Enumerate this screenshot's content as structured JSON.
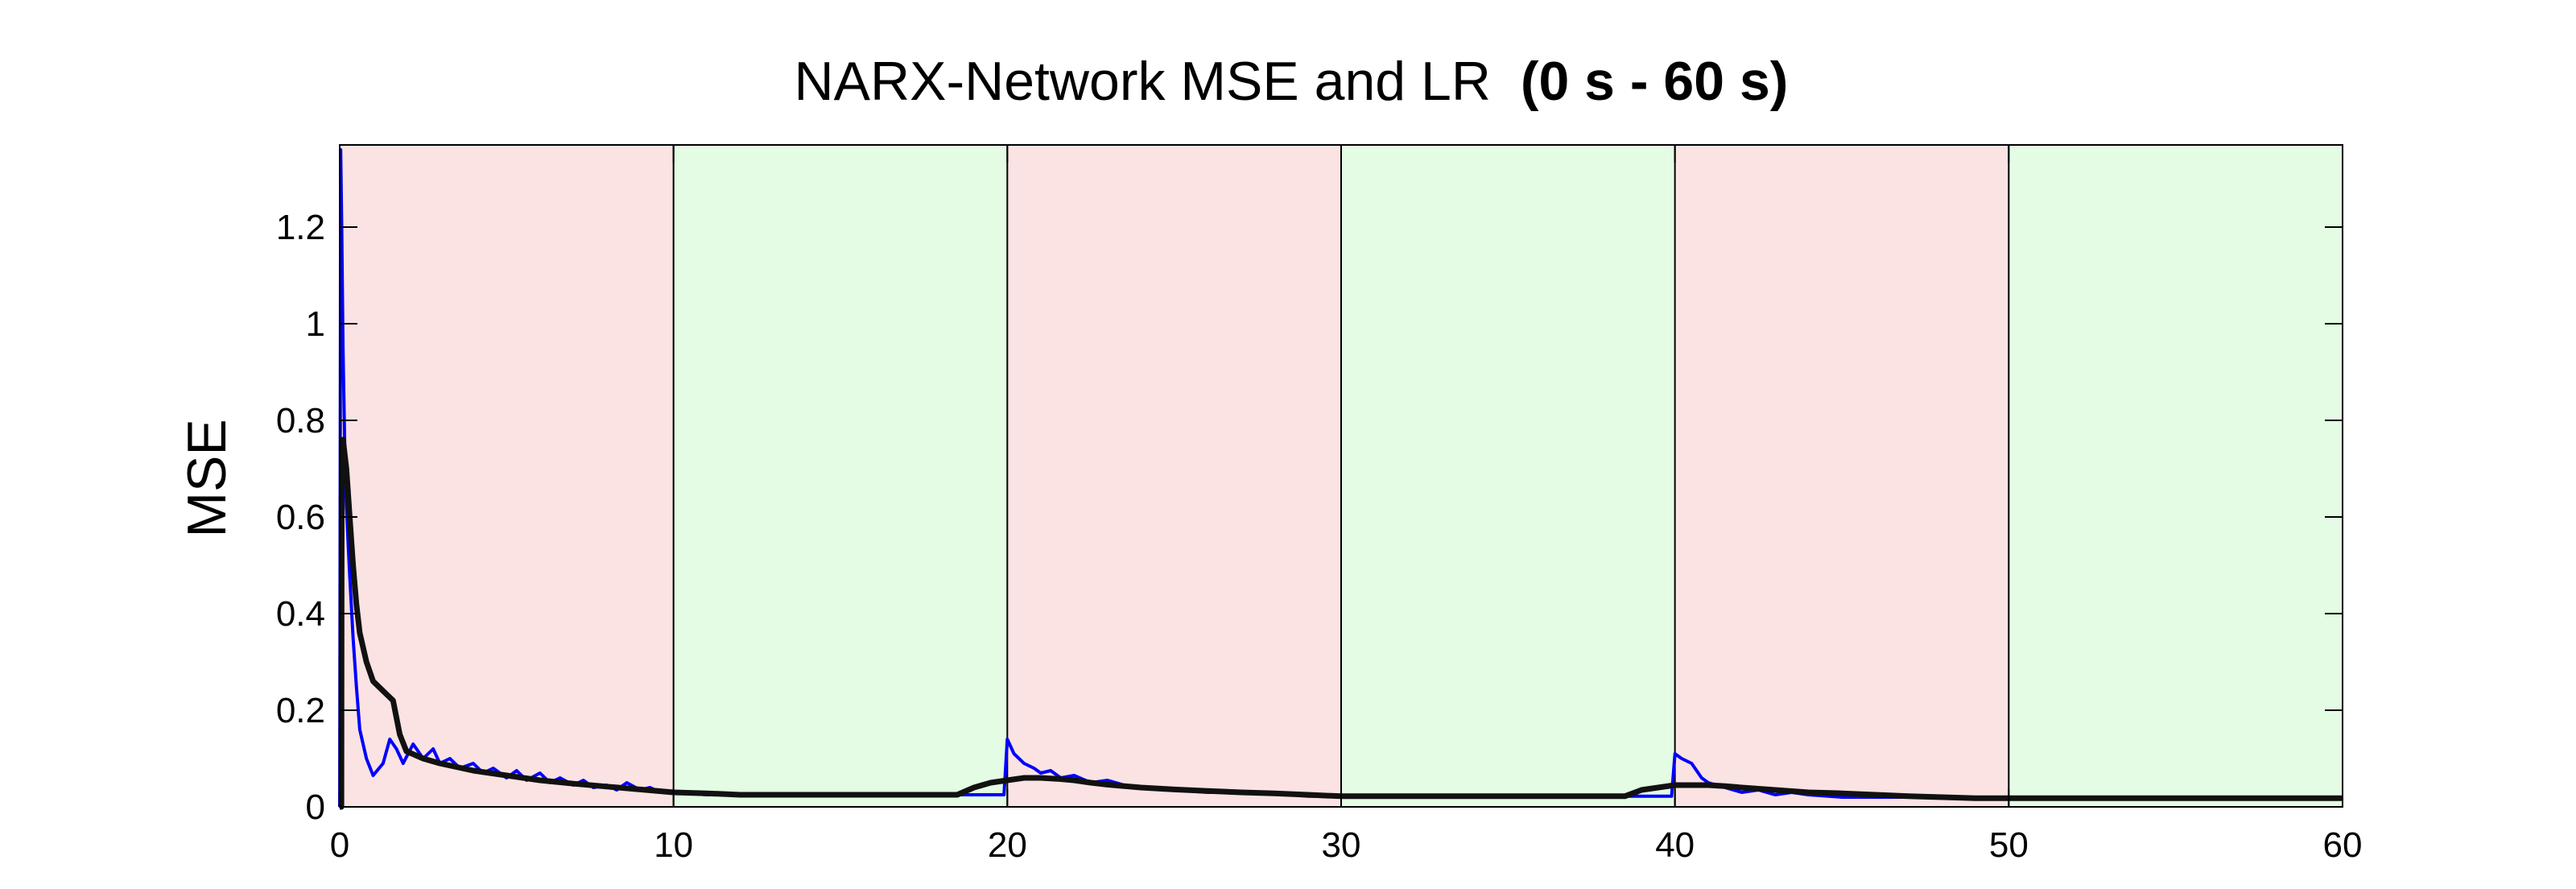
{
  "chart_data": {
    "type": "line",
    "title": "NARX-Network MSE and LR",
    "title_bold_suffix": "(0 s - 60 s)",
    "xlabel": "",
    "ylabel": "MSE",
    "xlim": [
      0,
      60
    ],
    "ylim": [
      0,
      1.37
    ],
    "x_ticks": [
      0,
      10,
      20,
      30,
      40,
      50,
      60
    ],
    "x_tick_labels": [
      "0",
      "10",
      "20",
      "30",
      "40",
      "50",
      "60"
    ],
    "y_ticks": [
      0,
      0.2,
      0.4,
      0.6,
      0.8,
      1,
      1.2
    ],
    "y_tick_labels": [
      "0",
      "0.2",
      "0.4",
      "0.6",
      "0.8",
      "1",
      "1.2"
    ],
    "grid": false,
    "colors": {
      "shade_red": "#fbe3e3",
      "shade_green": "#e3fce3",
      "divider": "#000000",
      "mse": "#0000ff",
      "lr": "#111111"
    },
    "shaded_regions": [
      {
        "x_start": 0,
        "x_end": 10,
        "color": "red"
      },
      {
        "x_start": 10,
        "x_end": 20,
        "color": "green"
      },
      {
        "x_start": 20,
        "x_end": 30,
        "color": "red"
      },
      {
        "x_start": 30,
        "x_end": 40,
        "color": "green"
      },
      {
        "x_start": 40,
        "x_end": 50,
        "color": "red"
      },
      {
        "x_start": 50,
        "x_end": 60,
        "color": "green"
      }
    ],
    "vertical_lines": [
      10,
      20,
      30,
      40,
      50
    ],
    "series": [
      {
        "color": "mse",
        "x": [
          0,
          0.03,
          0.06,
          0.1,
          0.15,
          0.2,
          0.3,
          0.4,
          0.5,
          0.6,
          0.8,
          1.0,
          1.3,
          1.5,
          1.7,
          1.9,
          2.2,
          2.5,
          2.8,
          3.0,
          3.3,
          3.6,
          4.0,
          4.3,
          4.6,
          5.0,
          5.3,
          5.6,
          6.0,
          6.3,
          6.6,
          7.0,
          7.3,
          7.6,
          8.0,
          8.3,
          8.6,
          9.0,
          9.3,
          9.6,
          10.0,
          11.0,
          12.0,
          14.0,
          16.0,
          18.0,
          19.9,
          20.0,
          20.2,
          20.5,
          20.8,
          21.0,
          21.3,
          21.6,
          22.0,
          22.5,
          23.0,
          23.5,
          24.0,
          25.0,
          26.0,
          27.0,
          28.0,
          29.0,
          30.0,
          32.0,
          35.0,
          38.0,
          39.9,
          40.0,
          40.2,
          40.5,
          40.8,
          41.0,
          41.5,
          42.0,
          42.5,
          43.0,
          43.5,
          44.0,
          45.0,
          46.0,
          47.0,
          48.0,
          49.0,
          50.0,
          52.0,
          55.0,
          58.0,
          60.0
        ],
        "values": [
          0.0,
          1.36,
          1.2,
          0.95,
          0.75,
          0.62,
          0.48,
          0.35,
          0.25,
          0.16,
          0.1,
          0.065,
          0.09,
          0.14,
          0.12,
          0.09,
          0.13,
          0.1,
          0.12,
          0.09,
          0.1,
          0.08,
          0.09,
          0.07,
          0.08,
          0.06,
          0.075,
          0.055,
          0.07,
          0.05,
          0.06,
          0.045,
          0.055,
          0.04,
          0.045,
          0.035,
          0.05,
          0.035,
          0.04,
          0.03,
          0.03,
          0.025,
          0.025,
          0.025,
          0.025,
          0.025,
          0.025,
          0.14,
          0.11,
          0.09,
          0.08,
          0.07,
          0.075,
          0.06,
          0.065,
          0.05,
          0.055,
          0.045,
          0.04,
          0.035,
          0.03,
          0.03,
          0.028,
          0.022,
          0.022,
          0.022,
          0.022,
          0.022,
          0.022,
          0.11,
          0.1,
          0.09,
          0.06,
          0.05,
          0.04,
          0.03,
          0.035,
          0.025,
          0.03,
          0.025,
          0.02,
          0.02,
          0.02,
          0.02,
          0.018,
          0.018,
          0.018,
          0.018,
          0.018,
          0.018
        ]
      },
      {
        "color": "lr",
        "x": [
          0,
          0.05,
          0.06,
          0.1,
          0.2,
          0.3,
          0.4,
          0.5,
          0.6,
          0.8,
          1.0,
          1.3,
          1.6,
          1.8,
          2.0,
          2.5,
          3.0,
          4.0,
          5.0,
          6.0,
          7.0,
          8.0,
          9.0,
          10.0,
          11.0,
          12.0,
          14.0,
          16.0,
          18.0,
          18.5,
          19.0,
          19.5,
          20.0,
          20.5,
          21.0,
          21.5,
          22.0,
          22.5,
          23.0,
          24.0,
          25.0,
          26.0,
          27.0,
          28.0,
          29.0,
          30.0,
          32.0,
          35.0,
          38.0,
          38.5,
          39.0,
          39.5,
          40.0,
          40.5,
          41.0,
          41.5,
          42.0,
          43.0,
          44.0,
          45.0,
          46.0,
          47.0,
          48.0,
          49.0,
          50.0,
          52.0,
          55.0,
          58.0,
          60.0
        ],
        "values": [
          0.0,
          0.0,
          0.68,
          0.76,
          0.7,
          0.6,
          0.5,
          0.42,
          0.36,
          0.3,
          0.26,
          0.24,
          0.22,
          0.15,
          0.115,
          0.1,
          0.09,
          0.075,
          0.065,
          0.055,
          0.048,
          0.042,
          0.036,
          0.03,
          0.028,
          0.025,
          0.025,
          0.025,
          0.025,
          0.025,
          0.04,
          0.05,
          0.055,
          0.06,
          0.06,
          0.058,
          0.055,
          0.05,
          0.046,
          0.04,
          0.036,
          0.033,
          0.03,
          0.028,
          0.025,
          0.022,
          0.022,
          0.022,
          0.022,
          0.022,
          0.035,
          0.04,
          0.045,
          0.045,
          0.045,
          0.043,
          0.04,
          0.035,
          0.03,
          0.028,
          0.025,
          0.022,
          0.02,
          0.018,
          0.018,
          0.018,
          0.018,
          0.018,
          0.018
        ]
      }
    ]
  }
}
